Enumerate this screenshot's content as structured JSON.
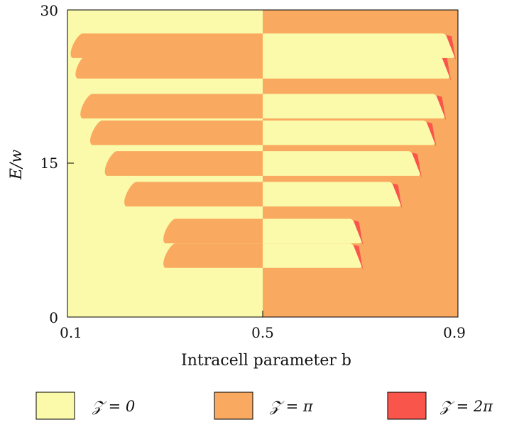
{
  "chart_data": {
    "type": "heatmap",
    "title": "",
    "xlabel": "Intracell parameter b",
    "ylabel": "E/w",
    "xlim": [
      0.1,
      0.9
    ],
    "ylim": [
      0,
      30
    ],
    "xticks": [
      "0.1",
      "0.5",
      "0.9"
    ],
    "yticks": [
      "0",
      "15",
      "30"
    ],
    "grid": false,
    "legend_placement": "bottom",
    "colors": {
      "zero": "#fafaaa",
      "pi": "#f9aa60",
      "two_pi": "#f9554b"
    },
    "series": [
      {
        "name": "𝒵 = 0",
        "color": "#fafaaa"
      },
      {
        "name": "𝒵 = π",
        "color": "#f9aa60"
      },
      {
        "name": "𝒵 = 2π",
        "color": "#f9554b"
      }
    ],
    "band_edges": [
      {
        "center_value": 6.0,
        "lower_edge_x": 0.3
      },
      {
        "center_value": 8.4,
        "lower_edge_x": 0.3
      },
      {
        "center_value": 12.0,
        "lower_edge_x": 0.22
      },
      {
        "center_value": 15.0,
        "lower_edge_x": 0.18
      },
      {
        "center_value": 18.0,
        "lower_edge_x": 0.15
      },
      {
        "center_value": 20.6,
        "lower_edge_x": 0.13
      },
      {
        "center_value": 24.5,
        "lower_edge_x": 0.12
      },
      {
        "center_value": 26.5,
        "lower_edge_x": 0.11
      }
    ]
  }
}
